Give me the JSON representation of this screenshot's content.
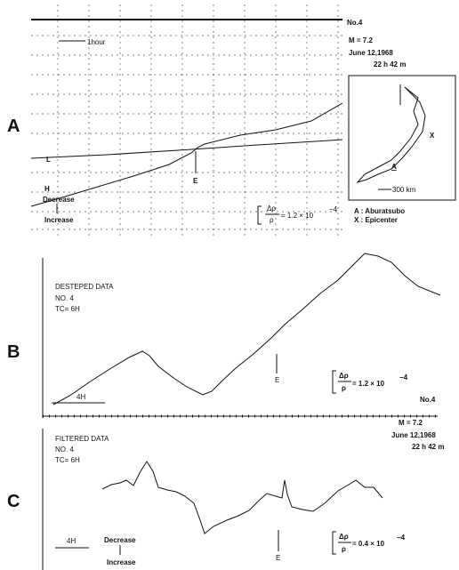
{
  "panel_a": {
    "label": "A",
    "station": "No.4",
    "magnitude": "M = 7.2",
    "date": "June 12,1968",
    "time": "22 h 42 m",
    "scale_bar": "1hour",
    "curve_l": "L",
    "curve_h": "H",
    "decrease": "Decrease",
    "increase": "Increase",
    "event": "E",
    "formula_num": "Δρ",
    "formula_den": "ρ",
    "formula_value": "= 1.2 × 10",
    "formula_exp": "−4",
    "map": {
      "site_mark": "A",
      "epicenter_mark": "X",
      "scale": "300 km",
      "legend_site": "A : Aburatsubo",
      "legend_epicenter": "X : Epicenter"
    }
  },
  "panel_b": {
    "label": "B",
    "title": "DESTEPED DATA",
    "station_code": "NO.  4",
    "tc": "TC=   6H",
    "scale_bar": "4H",
    "event": "E",
    "formula_num": "Δρ",
    "formula_den": "ρ",
    "formula_value": "= 1.2 × 10",
    "formula_exp": "−4",
    "station": "No.4",
    "magnitude": "M = 7.2",
    "date": "June 12,1968",
    "time": "22 h 42 m"
  },
  "panel_c": {
    "label": "C",
    "title": "FILTERED DATA",
    "station_code": "NO.  4",
    "tc": "TC=   6H",
    "scale_bar": "4H",
    "event": "E",
    "decrease": "Decrease",
    "increase": "Increase",
    "formula_num": "Δρ",
    "formula_den": "ρ",
    "formula_value": "= 0.4 × 10",
    "formula_exp": "−4"
  }
}
